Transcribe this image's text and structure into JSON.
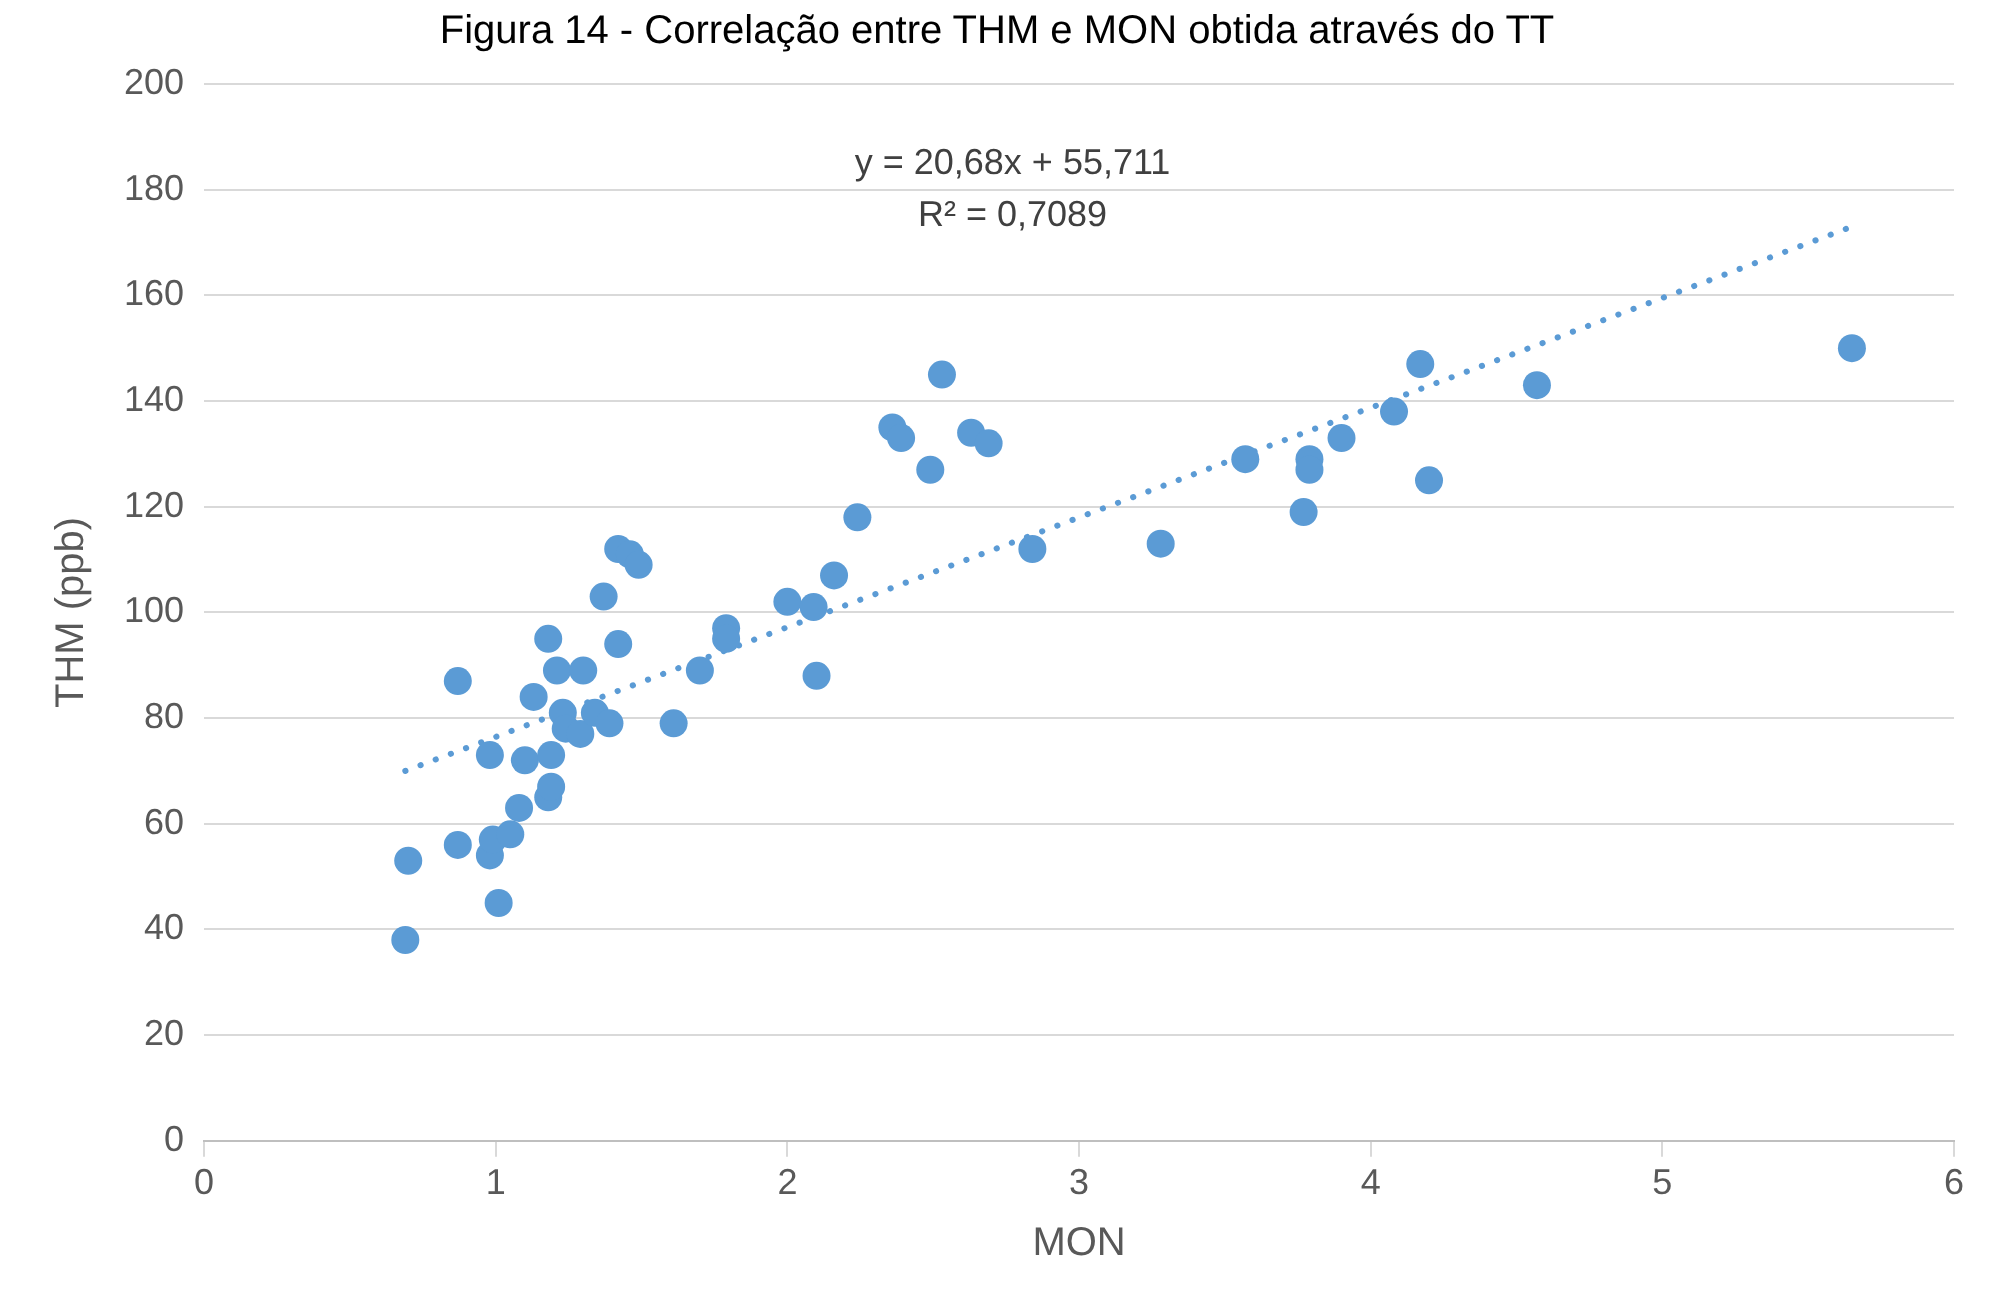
{
  "chart_data": {
    "type": "scatter",
    "title": "Figura 14 - Correlação entre THM e MON obtida através do TT",
    "xlabel": "MON",
    "ylabel": "THM (ppb)",
    "xlim": [
      0,
      6
    ],
    "xticks": [
      0,
      1,
      2,
      3,
      4,
      5,
      6
    ],
    "ylim": [
      0,
      200
    ],
    "yticks": [
      0,
      20,
      40,
      60,
      80,
      100,
      120,
      140,
      160,
      180,
      200
    ],
    "grid": "y",
    "legend": false,
    "annotations": [
      "y = 20,68x + 55,711",
      "R² = 0,7089"
    ],
    "series": [
      {
        "color": "#5b9bd5",
        "marker": "circle",
        "x": [
          0.69,
          0.7,
          0.87,
          0.87,
          0.98,
          0.98,
          0.99,
          1.01,
          1.05,
          1.08,
          1.1,
          1.13,
          1.18,
          1.18,
          1.19,
          1.19,
          1.21,
          1.23,
          1.24,
          1.29,
          1.3,
          1.34,
          1.37,
          1.39,
          1.42,
          1.42,
          1.46,
          1.49,
          1.61,
          1.7,
          1.79,
          1.79,
          2.0,
          2.09,
          2.1,
          2.16,
          2.24,
          2.36,
          2.39,
          2.49,
          2.53,
          2.63,
          2.69,
          2.84,
          3.28,
          3.57,
          3.77,
          3.79,
          3.79,
          3.9,
          4.08,
          4.17,
          4.2,
          4.57,
          5.65
        ],
        "values": [
          38,
          53,
          56,
          87,
          73,
          54,
          57,
          45,
          58,
          63,
          72,
          84,
          95,
          65,
          67,
          73,
          89,
          81,
          78,
          77,
          89,
          81,
          103,
          79,
          112,
          94,
          111,
          109,
          79,
          89,
          97,
          95,
          102,
          101,
          88,
          107,
          118,
          135,
          133,
          127,
          145,
          134,
          132,
          112,
          113,
          129,
          119,
          129,
          127,
          133,
          138,
          147,
          125,
          143,
          150
        ]
      },
      {
        "type": "line",
        "color": "#5b9bd5",
        "marker": "none",
        "line_style": "dotted",
        "x": [
          0.69,
          5.65
        ],
        "values": [
          70,
          173
        ]
      }
    ]
  }
}
